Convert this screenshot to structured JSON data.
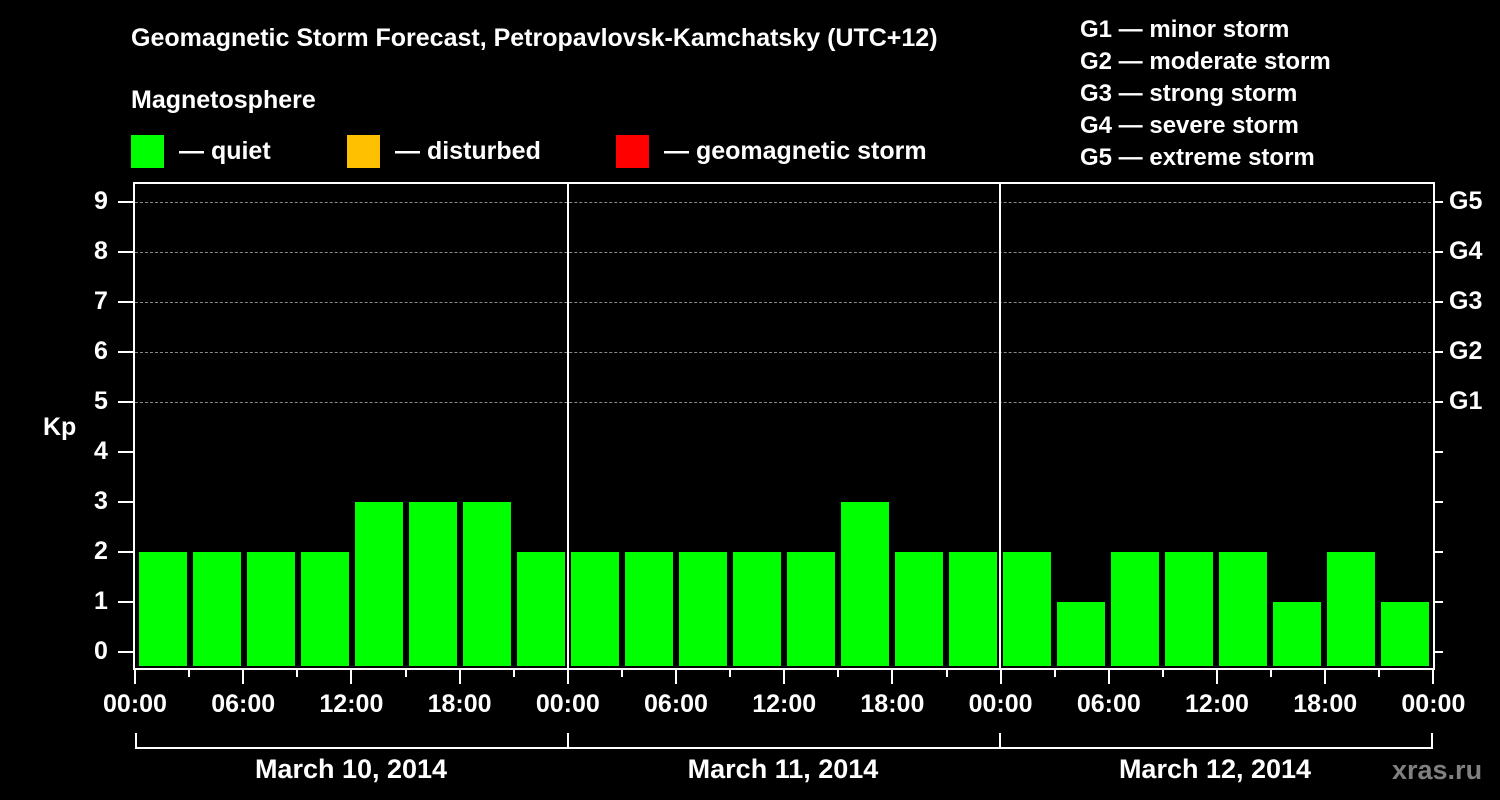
{
  "header": {
    "title": "Geomagnetic Storm Forecast, Petropavlovsk-Kamchatsky (UTC+12)",
    "subtitle": "Magnetosphere"
  },
  "legend": {
    "items": [
      {
        "label": "— quiet",
        "color": "#00ff00"
      },
      {
        "label": "— disturbed",
        "color": "#ffc000"
      },
      {
        "label": "— geomagnetic storm",
        "color": "#ff0000"
      }
    ]
  },
  "storm_scale": [
    "G1 — minor storm",
    "G2 — moderate storm",
    "G3 — strong storm",
    "G4 — severe storm",
    "G5 — extreme storm"
  ],
  "axes": {
    "ylabel": "Kp",
    "y_ticks": [
      "0",
      "1",
      "2",
      "3",
      "4",
      "5",
      "6",
      "7",
      "8",
      "9"
    ],
    "right_ticks": [
      {
        "kp": 5,
        "label": "G1"
      },
      {
        "kp": 6,
        "label": "G2"
      },
      {
        "kp": 7,
        "label": "G3"
      },
      {
        "kp": 8,
        "label": "G4"
      },
      {
        "kp": 9,
        "label": "G5"
      }
    ],
    "x_ticks": [
      "00:00",
      "06:00",
      "12:00",
      "18:00",
      "00:00",
      "06:00",
      "12:00",
      "18:00",
      "00:00",
      "06:00",
      "12:00",
      "18:00",
      "00:00"
    ],
    "days": [
      "March 10, 2014",
      "March 11, 2014",
      "March 12, 2014"
    ]
  },
  "watermark": "xras.ru",
  "chart_data": {
    "type": "bar",
    "title": "Geomagnetic Storm Forecast, Petropavlovsk-Kamchatsky (UTC+12)",
    "xlabel": "",
    "ylabel": "Kp",
    "ylim": [
      0,
      9
    ],
    "grid": "dashed horizontal at Kp 5-9",
    "legend_position": "top",
    "categories": [
      "Mar 10 00:00",
      "Mar 10 03:00",
      "Mar 10 06:00",
      "Mar 10 09:00",
      "Mar 10 12:00",
      "Mar 10 15:00",
      "Mar 10 18:00",
      "Mar 10 21:00",
      "Mar 11 00:00",
      "Mar 11 03:00",
      "Mar 11 06:00",
      "Mar 11 09:00",
      "Mar 11 12:00",
      "Mar 11 15:00",
      "Mar 11 18:00",
      "Mar 11 21:00",
      "Mar 12 00:00",
      "Mar 12 03:00",
      "Mar 12 06:00",
      "Mar 12 09:00",
      "Mar 12 12:00",
      "Mar 12 15:00",
      "Mar 12 18:00",
      "Mar 12 21:00"
    ],
    "values": [
      2,
      2,
      2,
      2,
      3,
      3,
      3,
      2,
      2,
      2,
      2,
      2,
      2,
      3,
      2,
      2,
      2,
      1,
      2,
      2,
      2,
      1,
      2,
      1
    ],
    "bar_color": "#00ff00",
    "right_axis": {
      "5": "G1",
      "6": "G2",
      "7": "G3",
      "8": "G4",
      "9": "G5"
    }
  }
}
